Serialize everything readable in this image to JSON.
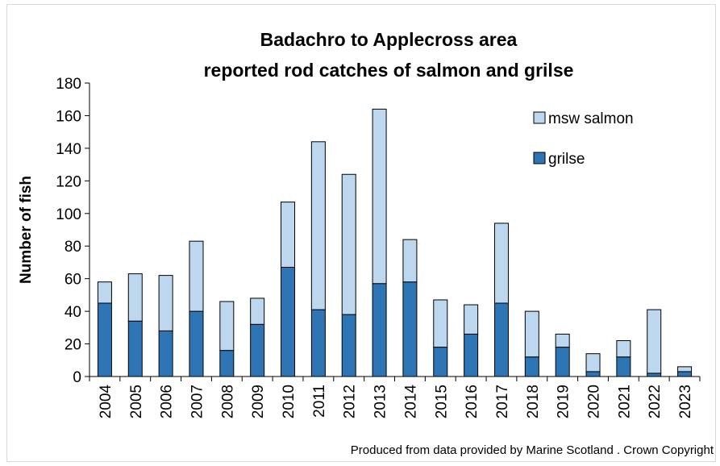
{
  "chart_data": {
    "type": "bar",
    "stacked": true,
    "title_line1": "Badachro to Applecross area",
    "title_line2": "reported rod catches of salmon and grilse",
    "ylabel": "Number of fish",
    "xlabel": "",
    "ylim": [
      0,
      180
    ],
    "yticks": [
      0,
      20,
      40,
      60,
      80,
      100,
      120,
      140,
      160,
      180
    ],
    "grid": false,
    "legend_position": "top-right",
    "categories": [
      "2004",
      "2005",
      "2006",
      "2007",
      "2008",
      "2009",
      "2010",
      "2011",
      "2012",
      "2013",
      "2014",
      "2015",
      "2016",
      "2017",
      "2018",
      "2019",
      "2020",
      "2021",
      "2022",
      "2023"
    ],
    "series": [
      {
        "name": "grilse",
        "color": "#2e75b6",
        "values": [
          45,
          34,
          28,
          40,
          16,
          32,
          67,
          41,
          38,
          57,
          58,
          18,
          26,
          45,
          12,
          18,
          3,
          12,
          2,
          3
        ]
      },
      {
        "name": "msw salmon",
        "color": "#bdd7ee",
        "values": [
          13,
          29,
          34,
          43,
          30,
          16,
          40,
          103,
          86,
          107,
          26,
          29,
          18,
          49,
          28,
          8,
          11,
          10,
          39,
          3
        ]
      }
    ],
    "footnote": "Produced from data provided by Marine Scotland . Crown Copyright"
  }
}
